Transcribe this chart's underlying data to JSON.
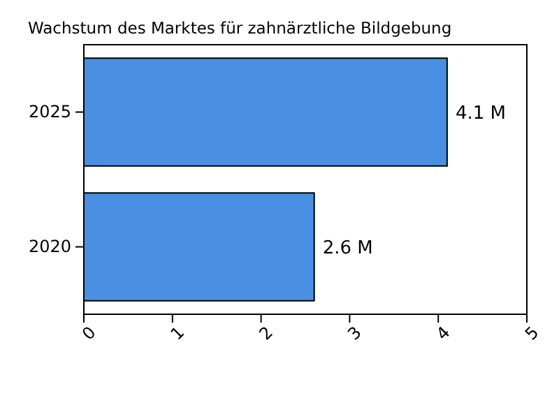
{
  "chart_data": {
    "type": "bar",
    "orientation": "horizontal",
    "title": "Wachstum des Marktes für zahnärztliche Bildgebung",
    "categories": [
      "2025",
      "2020"
    ],
    "values": [
      4.1,
      2.6
    ],
    "value_labels": [
      "4.1 M",
      "2.6 M"
    ],
    "color": "#4a90e2",
    "xlim": [
      0,
      5
    ],
    "xticks": [
      0,
      1,
      2,
      3,
      4,
      5
    ],
    "grid": false
  }
}
